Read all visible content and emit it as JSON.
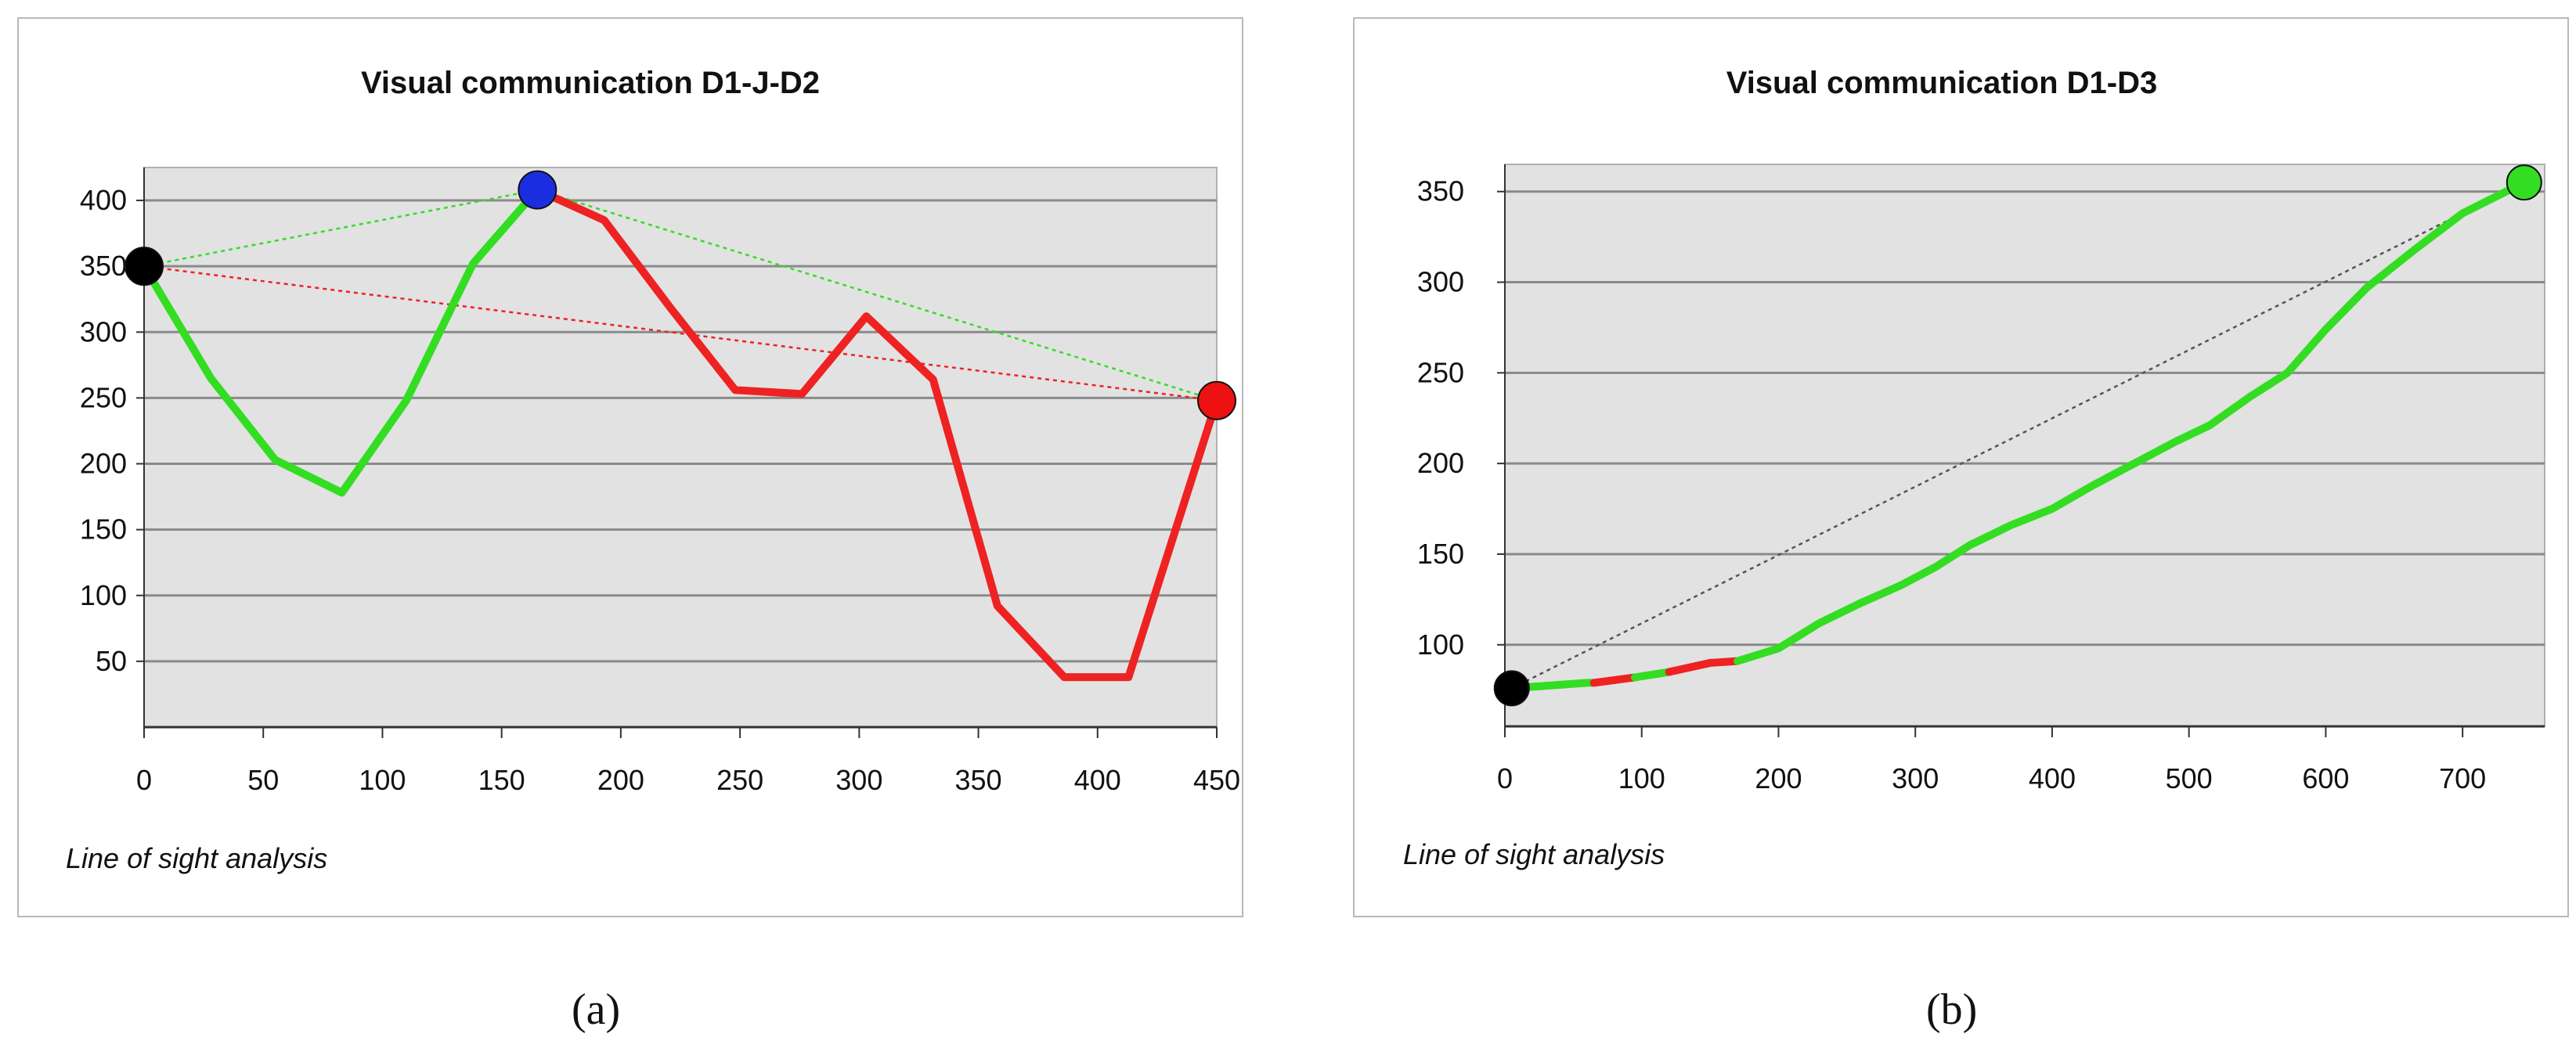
{
  "chart_data": [
    {
      "type": "line",
      "title": "Visual communication D1-J-D2",
      "footer": "Line of sight analysis",
      "xlim": [
        0,
        450
      ],
      "ylim": [
        0,
        425
      ],
      "x_ticks": [
        0,
        50,
        100,
        150,
        200,
        250,
        300,
        350,
        400,
        450
      ],
      "y_ticks": [
        50,
        100,
        150,
        200,
        250,
        300,
        350,
        400
      ],
      "grid": true,
      "background_color": "#e2e2e2",
      "series": [
        {
          "color": "#33dd22",
          "style": "solid",
          "points": [
            [
              0,
              350
            ],
            [
              28,
              265
            ],
            [
              55,
              203
            ],
            [
              83,
              178
            ],
            [
              110,
              248
            ],
            [
              138,
              352
            ],
            [
              165,
              408
            ]
          ]
        },
        {
          "color": "#ee2222",
          "style": "solid",
          "points": [
            [
              165,
              408
            ],
            [
              193,
              385
            ],
            [
              221,
              318
            ],
            [
              248,
              256
            ],
            [
              276,
              253
            ],
            [
              303,
              312
            ],
            [
              331,
              264
            ],
            [
              358,
              92
            ],
            [
              386,
              38
            ],
            [
              413,
              38
            ],
            [
              450,
              248
            ]
          ]
        },
        {
          "color": "#33dd22",
          "style": "dotted",
          "points": [
            [
              0,
              350
            ],
            [
              165,
              408
            ],
            [
              450,
              248
            ]
          ]
        },
        {
          "color": "#ee2222",
          "style": "dotted",
          "points": [
            [
              0,
              350
            ],
            [
              450,
              248
            ]
          ]
        }
      ],
      "markers": [
        {
          "x": 0,
          "y": 350,
          "color": "#000000"
        },
        {
          "x": 165,
          "y": 408,
          "color": "#1a2ee0"
        },
        {
          "x": 450,
          "y": 248,
          "color": "#ee1111"
        }
      ],
      "caption": "(a)"
    },
    {
      "type": "line",
      "title": "Visual communication D1-D3",
      "footer": "Line of sight analysis",
      "xlim": [
        0,
        760
      ],
      "ylim": [
        55,
        365
      ],
      "x_ticks": [
        0,
        100,
        200,
        300,
        400,
        500,
        600,
        700
      ],
      "y_ticks": [
        100,
        150,
        200,
        250,
        300,
        350
      ],
      "grid": true,
      "background_color": "#e2e2e2",
      "series": [
        {
          "color": "#33dd22",
          "style": "solid",
          "points": [
            [
              5,
              76
            ],
            [
              60,
              79
            ],
            [
              65,
              79
            ]
          ]
        },
        {
          "color": "#ee2222",
          "style": "solid",
          "points": [
            [
              65,
              79
            ],
            [
              95,
              82
            ]
          ]
        },
        {
          "color": "#33dd22",
          "style": "solid",
          "points": [
            [
              95,
              82
            ],
            [
              120,
              85
            ]
          ]
        },
        {
          "color": "#ee2222",
          "style": "solid",
          "points": [
            [
              120,
              85
            ],
            [
              150,
              90
            ],
            [
              170,
              91
            ]
          ]
        },
        {
          "color": "#33dd22",
          "style": "solid",
          "points": [
            [
              170,
              91
            ],
            [
              200,
              98
            ],
            [
              230,
              112
            ],
            [
              260,
              123
            ],
            [
              290,
              133
            ],
            [
              315,
              143
            ],
            [
              340,
              155
            ],
            [
              370,
              166
            ],
            [
              400,
              175
            ],
            [
              430,
              188
            ],
            [
              460,
              200
            ],
            [
              490,
              212
            ],
            [
              515,
              221
            ],
            [
              545,
              237
            ],
            [
              572,
              250
            ],
            [
              600,
              274
            ],
            [
              630,
              297
            ],
            [
              665,
              318
            ],
            [
              700,
              338
            ],
            [
              745,
              355
            ]
          ]
        },
        {
          "color": "#555555",
          "style": "dotted",
          "points": [
            [
              5,
              76
            ],
            [
              745,
              355
            ]
          ]
        }
      ],
      "markers": [
        {
          "x": 5,
          "y": 76,
          "color": "#000000"
        },
        {
          "x": 745,
          "y": 355,
          "color": "#33dd22"
        }
      ],
      "caption": "(b)"
    }
  ]
}
